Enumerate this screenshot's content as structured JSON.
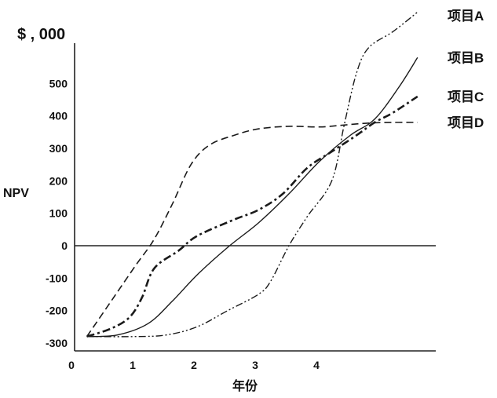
{
  "chart_data": {
    "type": "line",
    "unit_label": "$ , 000",
    "ylabel": "NPV",
    "xlabel": "年份",
    "xlim": [
      0,
      6
    ],
    "ylim": [
      -300,
      700
    ],
    "x_ticks": [
      "0",
      "1",
      "2",
      "3",
      "4"
    ],
    "y_ticks": [
      "500",
      "400",
      "300",
      "200",
      "100",
      "0",
      "-100",
      "-200",
      "-300"
    ],
    "grid": false,
    "legend": "right, at line ends",
    "series": [
      {
        "name": "项目A",
        "style": "dash-dot-dot",
        "points": [
          [
            0.2,
            -280
          ],
          [
            1.0,
            -280
          ],
          [
            1.5,
            -275
          ],
          [
            2.0,
            -250
          ],
          [
            2.5,
            -200
          ],
          [
            3.0,
            -150
          ],
          [
            3.2,
            -110
          ],
          [
            3.5,
            0
          ],
          [
            3.8,
            90
          ],
          [
            4.2,
            200
          ],
          [
            4.4,
            370
          ],
          [
            4.6,
            530
          ],
          [
            4.8,
            610
          ],
          [
            5.2,
            660
          ],
          [
            5.6,
            720
          ]
        ]
      },
      {
        "name": "项目B",
        "style": "solid",
        "points": [
          [
            0.2,
            -280
          ],
          [
            0.7,
            -275
          ],
          [
            1.2,
            -240
          ],
          [
            1.6,
            -170
          ],
          [
            2.0,
            -90
          ],
          [
            2.5,
            -5
          ],
          [
            3.0,
            70
          ],
          [
            3.5,
            160
          ],
          [
            4.0,
            260
          ],
          [
            4.5,
            340
          ],
          [
            4.9,
            390
          ],
          [
            5.3,
            490
          ],
          [
            5.6,
            580
          ]
        ]
      },
      {
        "name": "项目C",
        "style": "dash-dot",
        "points": [
          [
            0.2,
            -280
          ],
          [
            0.6,
            -255
          ],
          [
            0.9,
            -220
          ],
          [
            1.1,
            -160
          ],
          [
            1.3,
            -70
          ],
          [
            1.7,
            -15
          ],
          [
            2.0,
            30
          ],
          [
            2.6,
            80
          ],
          [
            3.0,
            110
          ],
          [
            3.4,
            160
          ],
          [
            3.8,
            240
          ],
          [
            4.2,
            290
          ],
          [
            4.6,
            340
          ],
          [
            4.9,
            380
          ],
          [
            5.2,
            410
          ],
          [
            5.6,
            460
          ]
        ]
      },
      {
        "name": "项目D",
        "style": "dashed",
        "points": [
          [
            0.2,
            -280
          ],
          [
            0.6,
            -170
          ],
          [
            1.0,
            -60
          ],
          [
            1.3,
            20
          ],
          [
            1.6,
            130
          ],
          [
            1.9,
            250
          ],
          [
            2.2,
            310
          ],
          [
            2.6,
            340
          ],
          [
            3.0,
            360
          ],
          [
            3.5,
            368
          ],
          [
            4.0,
            366
          ],
          [
            4.4,
            372
          ],
          [
            4.8,
            378
          ],
          [
            5.2,
            380
          ],
          [
            5.6,
            380
          ]
        ]
      }
    ]
  }
}
